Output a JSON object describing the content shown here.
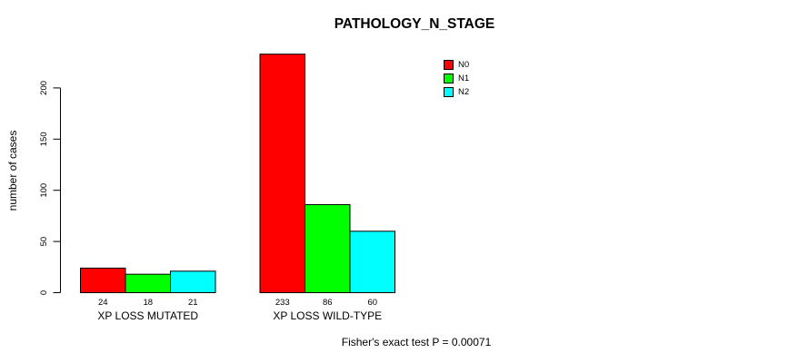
{
  "page": {
    "background": "#ffffff",
    "foreground": "#000000"
  },
  "chart_data": {
    "type": "bar",
    "title": "PATHOLOGY_N_STAGE",
    "ylabel": "number of cases",
    "xlabel": "",
    "categories": [
      "XP LOSS MUTATED",
      "XP LOSS WILD-TYPE"
    ],
    "series": [
      {
        "name": "N0",
        "color": "#ff0000",
        "values": [
          24,
          233
        ]
      },
      {
        "name": "N1",
        "color": "#00ff00",
        "values": [
          18,
          86
        ]
      },
      {
        "name": "N2",
        "color": "#00ffff",
        "values": [
          21,
          60
        ]
      }
    ],
    "bar_value_labels": [
      [
        24,
        18,
        21
      ],
      [
        233,
        86,
        60
      ]
    ],
    "yticks": [
      0,
      50,
      100,
      150,
      200
    ],
    "ylim": [
      0,
      233
    ],
    "grid": false,
    "bar_border_color": "#000000",
    "ytick_label_rotation": -90,
    "legend_position": "top-right",
    "annotation": "Fisher's exact test P = 0.00071"
  }
}
